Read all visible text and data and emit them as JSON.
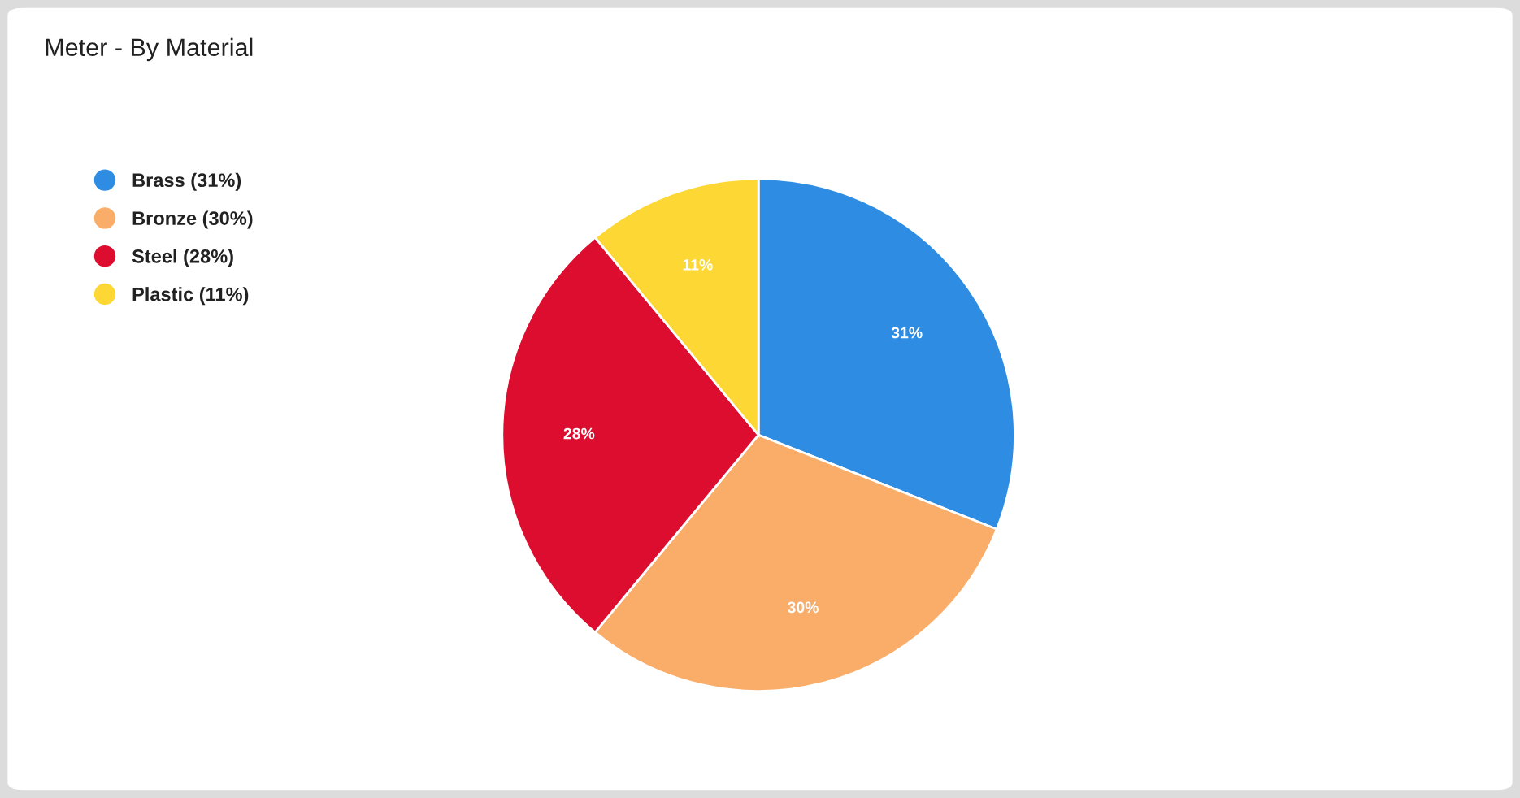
{
  "chart_data": {
    "type": "pie",
    "title": "Meter - By Material",
    "categories": [
      "Brass (31%)",
      "Bronze (30%)",
      "Steel (28%)",
      "Plastic (11%)"
    ],
    "values": [
      31,
      30,
      28,
      11
    ],
    "colors": [
      "#2e8de3",
      "#f9ad69",
      "#dd0d30",
      "#fdd835"
    ],
    "value_labels": [
      "31%",
      "30%",
      "28%",
      "11%"
    ],
    "legend": "top left"
  }
}
